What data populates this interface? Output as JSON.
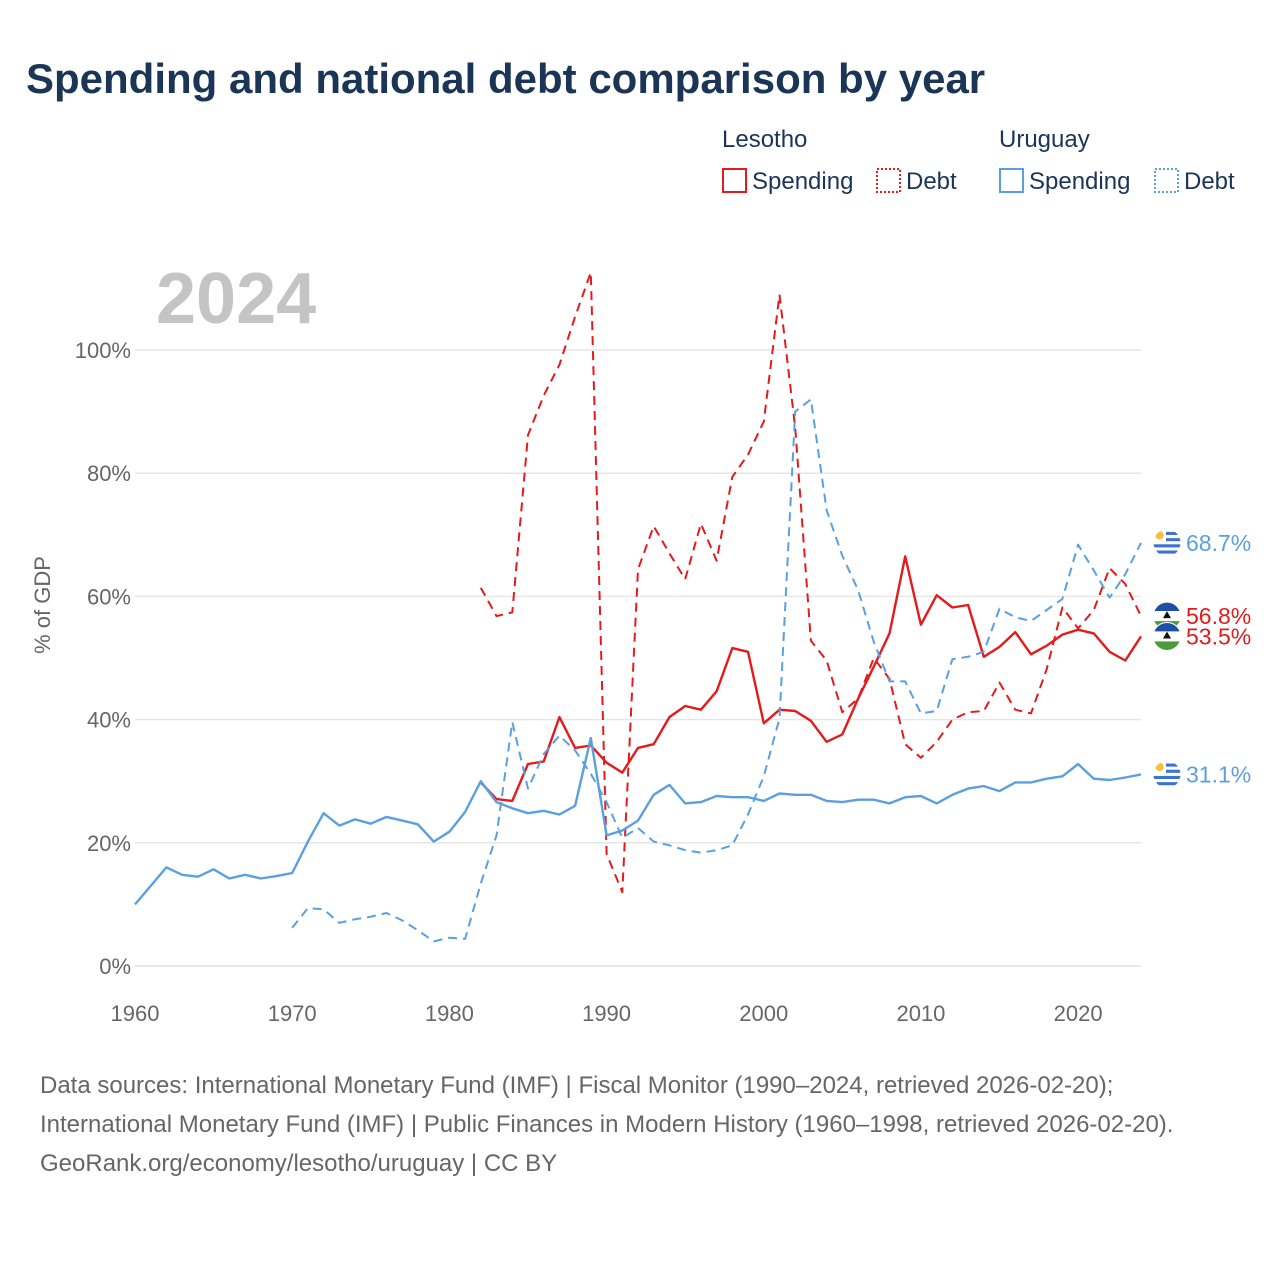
{
  "title": "Spending and national debt comparison by year",
  "year_label": "2024",
  "legend": {
    "groups": [
      {
        "country": "Lesotho",
        "color": "#e41a1c",
        "items": [
          {
            "label": "Spending",
            "style": "solid"
          },
          {
            "label": "Debt",
            "style": "dotted"
          }
        ]
      },
      {
        "country": "Uruguay",
        "color": "#5aa0e0",
        "items": [
          {
            "label": "Spending",
            "style": "solid"
          },
          {
            "label": "Debt",
            "style": "dotted"
          }
        ]
      }
    ]
  },
  "end_labels": [
    {
      "text": "68.7%",
      "country": "Uruguay",
      "value": 68.7
    },
    {
      "text": "56.8%",
      "country": "Lesotho",
      "value": 56.8
    },
    {
      "text": "53.5%",
      "country": "Lesotho",
      "value": 53.5
    },
    {
      "text": "31.1%",
      "country": "Uruguay",
      "value": 31.1
    }
  ],
  "footer": {
    "source_line": "Data sources: International Monetary Fund (IMF) | Fiscal Monitor (1990–2024, retrieved 2026-02-20); International Monetary Fund (IMF) | Public Finances in Modern History (1960–1998, retrieved 2026-02-20).",
    "credit": "GeoRank.org/economy/lesotho/uruguay | CC BY"
  },
  "chart_data": {
    "type": "line",
    "title": "Spending and national debt comparison by year",
    "xlabel": "",
    "ylabel": "% of GDP",
    "xlim": [
      1960,
      2024
    ],
    "ylim": [
      0,
      100
    ],
    "x_ticks": [
      1960,
      1970,
      1980,
      1990,
      2000,
      2010,
      2020
    ],
    "y_ticks": [
      0,
      20,
      40,
      60,
      80,
      100
    ],
    "y_tick_labels": [
      "0%",
      "20%",
      "40%",
      "60%",
      "80%",
      "100%"
    ],
    "grid": true,
    "series": [
      {
        "name": "Lesotho Spending",
        "country": "Lesotho",
        "metric": "Spending",
        "color": "#e41a1c",
        "dash": "solid",
        "points": [
          [
            1982,
            29.8
          ],
          [
            1983,
            27.1
          ],
          [
            1984,
            26.8
          ],
          [
            1985,
            32.8
          ],
          [
            1986,
            33.2
          ],
          [
            1987,
            40.4
          ],
          [
            1988,
            35.4
          ],
          [
            1989,
            35.8
          ],
          [
            1990,
            33.0
          ],
          [
            1991,
            31.4
          ],
          [
            1992,
            35.4
          ],
          [
            1993,
            36.0
          ],
          [
            1994,
            40.4
          ],
          [
            1995,
            42.2
          ],
          [
            1996,
            41.6
          ],
          [
            1997,
            44.6
          ],
          [
            1998,
            51.6
          ],
          [
            1999,
            51.0
          ],
          [
            2000,
            39.4
          ],
          [
            2001,
            41.6
          ],
          [
            2002,
            41.4
          ],
          [
            2003,
            39.8
          ],
          [
            2004,
            36.4
          ],
          [
            2005,
            37.6
          ],
          [
            2006,
            43.4
          ],
          [
            2007,
            48.6
          ],
          [
            2008,
            54.0
          ],
          [
            2009,
            66.5
          ],
          [
            2010,
            55.4
          ],
          [
            2011,
            60.2
          ],
          [
            2012,
            58.2
          ],
          [
            2013,
            58.6
          ],
          [
            2014,
            50.2
          ],
          [
            2015,
            51.8
          ],
          [
            2016,
            54.2
          ],
          [
            2017,
            50.6
          ],
          [
            2018,
            52.0
          ],
          [
            2019,
            53.8
          ],
          [
            2020,
            54.6
          ],
          [
            2021,
            54.0
          ],
          [
            2022,
            51.0
          ],
          [
            2023,
            49.6
          ],
          [
            2024,
            53.5
          ]
        ]
      },
      {
        "name": "Lesotho Debt",
        "country": "Lesotho",
        "metric": "Debt",
        "color": "#e41a1c",
        "dash": "dashed",
        "points": [
          [
            1982,
            61.4
          ],
          [
            1983,
            56.8
          ],
          [
            1984,
            57.4
          ],
          [
            1985,
            86.2
          ],
          [
            1986,
            92.6
          ],
          [
            1987,
            97.6
          ],
          [
            1988,
            105.4
          ],
          [
            1989,
            112.6
          ],
          [
            1990,
            18.2
          ],
          [
            1991,
            12.0
          ],
          [
            1992,
            64.4
          ],
          [
            1993,
            71.4
          ],
          [
            1994,
            67.0
          ],
          [
            1995,
            62.8
          ],
          [
            1996,
            71.8
          ],
          [
            1997,
            65.8
          ],
          [
            1998,
            79.4
          ],
          [
            1999,
            83.0
          ],
          [
            2000,
            88.4
          ],
          [
            2001,
            109.0
          ],
          [
            2002,
            87.4
          ],
          [
            2003,
            52.8
          ],
          [
            2004,
            49.6
          ],
          [
            2005,
            41.2
          ],
          [
            2006,
            43.4
          ],
          [
            2007,
            50.0
          ],
          [
            2008,
            46.6
          ],
          [
            2009,
            36.0
          ],
          [
            2010,
            33.8
          ],
          [
            2011,
            36.4
          ],
          [
            2012,
            40.0
          ],
          [
            2013,
            41.2
          ],
          [
            2014,
            41.4
          ],
          [
            2015,
            46.0
          ],
          [
            2016,
            41.6
          ],
          [
            2017,
            41.0
          ],
          [
            2018,
            48.2
          ],
          [
            2019,
            58.2
          ],
          [
            2020,
            54.8
          ],
          [
            2021,
            57.8
          ],
          [
            2022,
            64.6
          ],
          [
            2023,
            62.0
          ],
          [
            2024,
            56.8
          ]
        ]
      },
      {
        "name": "Uruguay Spending",
        "country": "Uruguay",
        "metric": "Spending",
        "color": "#5aa0e0",
        "dash": "solid",
        "points": [
          [
            1960,
            10.0
          ],
          [
            1961,
            13.0
          ],
          [
            1962,
            16.0
          ],
          [
            1963,
            14.8
          ],
          [
            1964,
            14.5
          ],
          [
            1965,
            15.7
          ],
          [
            1966,
            14.2
          ],
          [
            1967,
            14.8
          ],
          [
            1968,
            14.2
          ],
          [
            1969,
            14.6
          ],
          [
            1970,
            15.1
          ],
          [
            1971,
            20.2
          ],
          [
            1972,
            24.8
          ],
          [
            1973,
            22.8
          ],
          [
            1974,
            23.8
          ],
          [
            1975,
            23.1
          ],
          [
            1976,
            24.2
          ],
          [
            1977,
            23.6
          ],
          [
            1978,
            23.0
          ],
          [
            1979,
            20.2
          ],
          [
            1980,
            21.8
          ],
          [
            1981,
            25.0
          ],
          [
            1982,
            30.0
          ],
          [
            1983,
            26.6
          ],
          [
            1984,
            25.6
          ],
          [
            1985,
            24.8
          ],
          [
            1986,
            25.2
          ],
          [
            1987,
            24.6
          ],
          [
            1988,
            26.0
          ],
          [
            1989,
            37.0
          ],
          [
            1990,
            21.2
          ],
          [
            1991,
            22.0
          ],
          [
            1992,
            23.6
          ],
          [
            1993,
            27.8
          ],
          [
            1994,
            29.4
          ],
          [
            1995,
            26.4
          ],
          [
            1996,
            26.6
          ],
          [
            1997,
            27.6
          ],
          [
            1998,
            27.4
          ],
          [
            1999,
            27.4
          ],
          [
            2000,
            26.8
          ],
          [
            2001,
            28.0
          ],
          [
            2002,
            27.8
          ],
          [
            2003,
            27.8
          ],
          [
            2004,
            26.8
          ],
          [
            2005,
            26.6
          ],
          [
            2006,
            27.0
          ],
          [
            2007,
            27.0
          ],
          [
            2008,
            26.4
          ],
          [
            2009,
            27.4
          ],
          [
            2010,
            27.6
          ],
          [
            2011,
            26.4
          ],
          [
            2012,
            27.8
          ],
          [
            2013,
            28.8
          ],
          [
            2014,
            29.2
          ],
          [
            2015,
            28.4
          ],
          [
            2016,
            29.8
          ],
          [
            2017,
            29.8
          ],
          [
            2018,
            30.4
          ],
          [
            2019,
            30.8
          ],
          [
            2020,
            32.8
          ],
          [
            2021,
            30.4
          ],
          [
            2022,
            30.2
          ],
          [
            2023,
            30.6
          ],
          [
            2024,
            31.1
          ]
        ]
      },
      {
        "name": "Uruguay Debt",
        "country": "Uruguay",
        "metric": "Debt",
        "color": "#5aa0e0",
        "dash": "dashed",
        "points": [
          [
            1970,
            6.2
          ],
          [
            1971,
            9.4
          ],
          [
            1972,
            9.2
          ],
          [
            1973,
            7.0
          ],
          [
            1974,
            7.6
          ],
          [
            1975,
            8.0
          ],
          [
            1976,
            8.6
          ],
          [
            1977,
            7.4
          ],
          [
            1978,
            5.8
          ],
          [
            1979,
            4.0
          ],
          [
            1980,
            4.6
          ],
          [
            1981,
            4.4
          ],
          [
            1982,
            13.4
          ],
          [
            1983,
            21.2
          ],
          [
            1984,
            39.6
          ],
          [
            1985,
            28.8
          ],
          [
            1986,
            34.4
          ],
          [
            1987,
            37.4
          ],
          [
            1988,
            35.0
          ],
          [
            1989,
            31.2
          ],
          [
            1990,
            26.6
          ],
          [
            1991,
            20.8
          ],
          [
            1992,
            22.4
          ],
          [
            1993,
            20.2
          ],
          [
            1994,
            19.6
          ],
          [
            1995,
            18.8
          ],
          [
            1996,
            18.4
          ],
          [
            1997,
            18.8
          ],
          [
            1998,
            19.6
          ],
          [
            1999,
            24.6
          ],
          [
            2000,
            30.8
          ],
          [
            2001,
            40.2
          ],
          [
            2002,
            90.0
          ],
          [
            2003,
            92.0
          ],
          [
            2004,
            74.0
          ],
          [
            2005,
            66.6
          ],
          [
            2006,
            61.0
          ],
          [
            2007,
            52.6
          ],
          [
            2008,
            46.2
          ],
          [
            2009,
            46.2
          ],
          [
            2010,
            41.0
          ],
          [
            2011,
            41.4
          ],
          [
            2012,
            49.8
          ],
          [
            2013,
            50.2
          ],
          [
            2014,
            51.0
          ],
          [
            2015,
            58.0
          ],
          [
            2016,
            56.6
          ],
          [
            2017,
            56.0
          ],
          [
            2018,
            57.8
          ],
          [
            2019,
            59.6
          ],
          [
            2020,
            68.4
          ],
          [
            2021,
            64.2
          ],
          [
            2022,
            59.8
          ],
          [
            2023,
            63.6
          ],
          [
            2024,
            68.7
          ]
        ]
      }
    ]
  }
}
